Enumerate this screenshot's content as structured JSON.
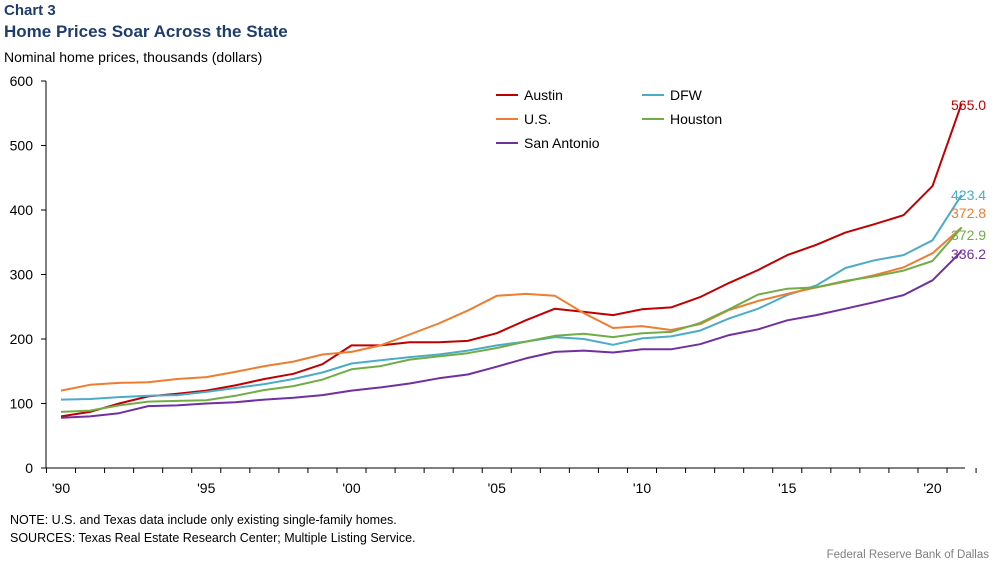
{
  "header": {
    "chart_label": "Chart 3",
    "title": "Home Prices Soar Across the State",
    "y_axis_title": "Nominal home prices, thousands (dollars)"
  },
  "footer": {
    "note": "NOTE: U.S. and Texas data include only existing single-family homes.",
    "sources": "SOURCES: Texas Real Estate Research Center; Multiple Listing Service.",
    "credit": "Federal Reserve Bank of Dallas"
  },
  "chart_data": {
    "type": "line",
    "title": "Home Prices Soar Across the State",
    "ylabel": "Nominal home prices, thousands (dollars)",
    "xlabel": "",
    "ylim": [
      0,
      600
    ],
    "xlim": [
      1990,
      2021
    ],
    "y_ticks": [
      0,
      100,
      200,
      300,
      400,
      500,
      600
    ],
    "x_tick_values": [
      1990,
      1995,
      2000,
      2005,
      2010,
      2015,
      2020
    ],
    "x_tick_labels": [
      "'90",
      "'95",
      "'00",
      "'05",
      "'10",
      "'15",
      "'20"
    ],
    "grid": false,
    "legend_position": "top-center",
    "x": [
      1990,
      1991,
      1992,
      1993,
      1994,
      1995,
      1996,
      1997,
      1998,
      1999,
      2000,
      2001,
      2002,
      2003,
      2004,
      2005,
      2006,
      2007,
      2008,
      2009,
      2010,
      2011,
      2012,
      2013,
      2014,
      2015,
      2016,
      2017,
      2018,
      2019,
      2020,
      2021
    ],
    "series": [
      {
        "name": "Austin",
        "color": "#c00000",
        "end_label": "565.0",
        "values": [
          80,
          87,
          100,
          111,
          115,
          120,
          128,
          138,
          146,
          161,
          190,
          190,
          195,
          195,
          197,
          209,
          229,
          247,
          242,
          237,
          246,
          249,
          265,
          287,
          307,
          330,
          346,
          365,
          378,
          392,
          437,
          565.0
        ]
      },
      {
        "name": "DFW",
        "color": "#4bacc6",
        "end_label": "423.4",
        "values": [
          106,
          107,
          110,
          112,
          113,
          118,
          124,
          130,
          138,
          148,
          162,
          167,
          172,
          176,
          182,
          190,
          196,
          203,
          200,
          191,
          201,
          204,
          213,
          232,
          247,
          268,
          283,
          310,
          322,
          330,
          353,
          423.4
        ]
      },
      {
        "name": "U.S.",
        "color": "#ed7d31",
        "end_label": "372.8",
        "values": [
          120,
          129,
          132,
          133,
          138,
          141,
          149,
          158,
          165,
          176,
          180,
          190,
          207,
          224,
          244,
          267,
          270,
          267,
          240,
          217,
          220,
          214,
          223,
          245,
          259,
          270,
          280,
          289,
          299,
          311,
          333,
          372.8
        ]
      },
      {
        "name": "Houston",
        "color": "#70ad47",
        "end_label": "372.9",
        "values": [
          87,
          89,
          97,
          103,
          104,
          105,
          112,
          121,
          127,
          137,
          153,
          158,
          168,
          173,
          178,
          186,
          196,
          205,
          208,
          203,
          209,
          211,
          225,
          246,
          269,
          278,
          280,
          290,
          297,
          306,
          321,
          372.9
        ]
      },
      {
        "name": "San Antonio",
        "color": "#7030a0",
        "end_label": "336.2",
        "values": [
          78,
          80,
          85,
          96,
          97,
          100,
          102,
          106,
          109,
          113,
          120,
          125,
          131,
          139,
          145,
          157,
          170,
          180,
          182,
          179,
          184,
          184,
          192,
          206,
          215,
          229,
          237,
          247,
          257,
          268,
          291,
          336.2
        ]
      }
    ]
  }
}
